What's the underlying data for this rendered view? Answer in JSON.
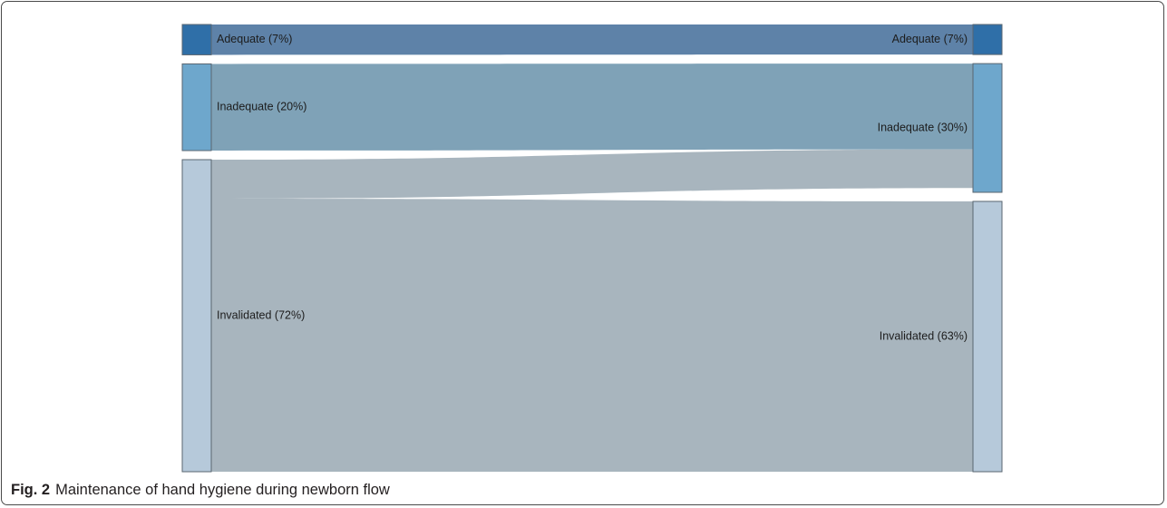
{
  "chart_data": {
    "type": "sankey",
    "stages": [
      {
        "nodes": [
          {
            "id": "s_adequate",
            "label": "Adequate (7%)",
            "value": 7,
            "color": "#2f6fa8"
          },
          {
            "id": "s_inadequate",
            "label": "Inadequate (20%)",
            "value": 20,
            "color": "#6ea7cc"
          },
          {
            "id": "s_invalidated",
            "label": "Invalidated (72%)",
            "value": 72,
            "color": "#b6c9da"
          }
        ]
      },
      {
        "nodes": [
          {
            "id": "t_adequate",
            "label": "Adequate (7%)",
            "value": 7,
            "color": "#2f6fa8"
          },
          {
            "id": "t_inadequate",
            "label": "Inadequate (30%)",
            "value": 30,
            "color": "#6ea7cc"
          },
          {
            "id": "t_invalidated",
            "label": "Invalidated (63%)",
            "value": 63,
            "color": "#b6c9da"
          }
        ]
      }
    ],
    "links": [
      {
        "source": "s_adequate",
        "target": "t_adequate",
        "value": 7,
        "color": "#5e82a8"
      },
      {
        "source": "s_inadequate",
        "target": "t_inadequate",
        "value": 20,
        "color": "#7fa2b7"
      },
      {
        "source": "s_invalidated",
        "target": "t_inadequate",
        "value": 9,
        "color": "#a8b5be"
      },
      {
        "source": "s_invalidated",
        "target": "t_invalidated",
        "value": 63,
        "color": "#a8b5be"
      }
    ]
  },
  "caption": {
    "prefix": "Fig. 2",
    "text": "Maintenance of hand hygiene during newborn flow"
  }
}
